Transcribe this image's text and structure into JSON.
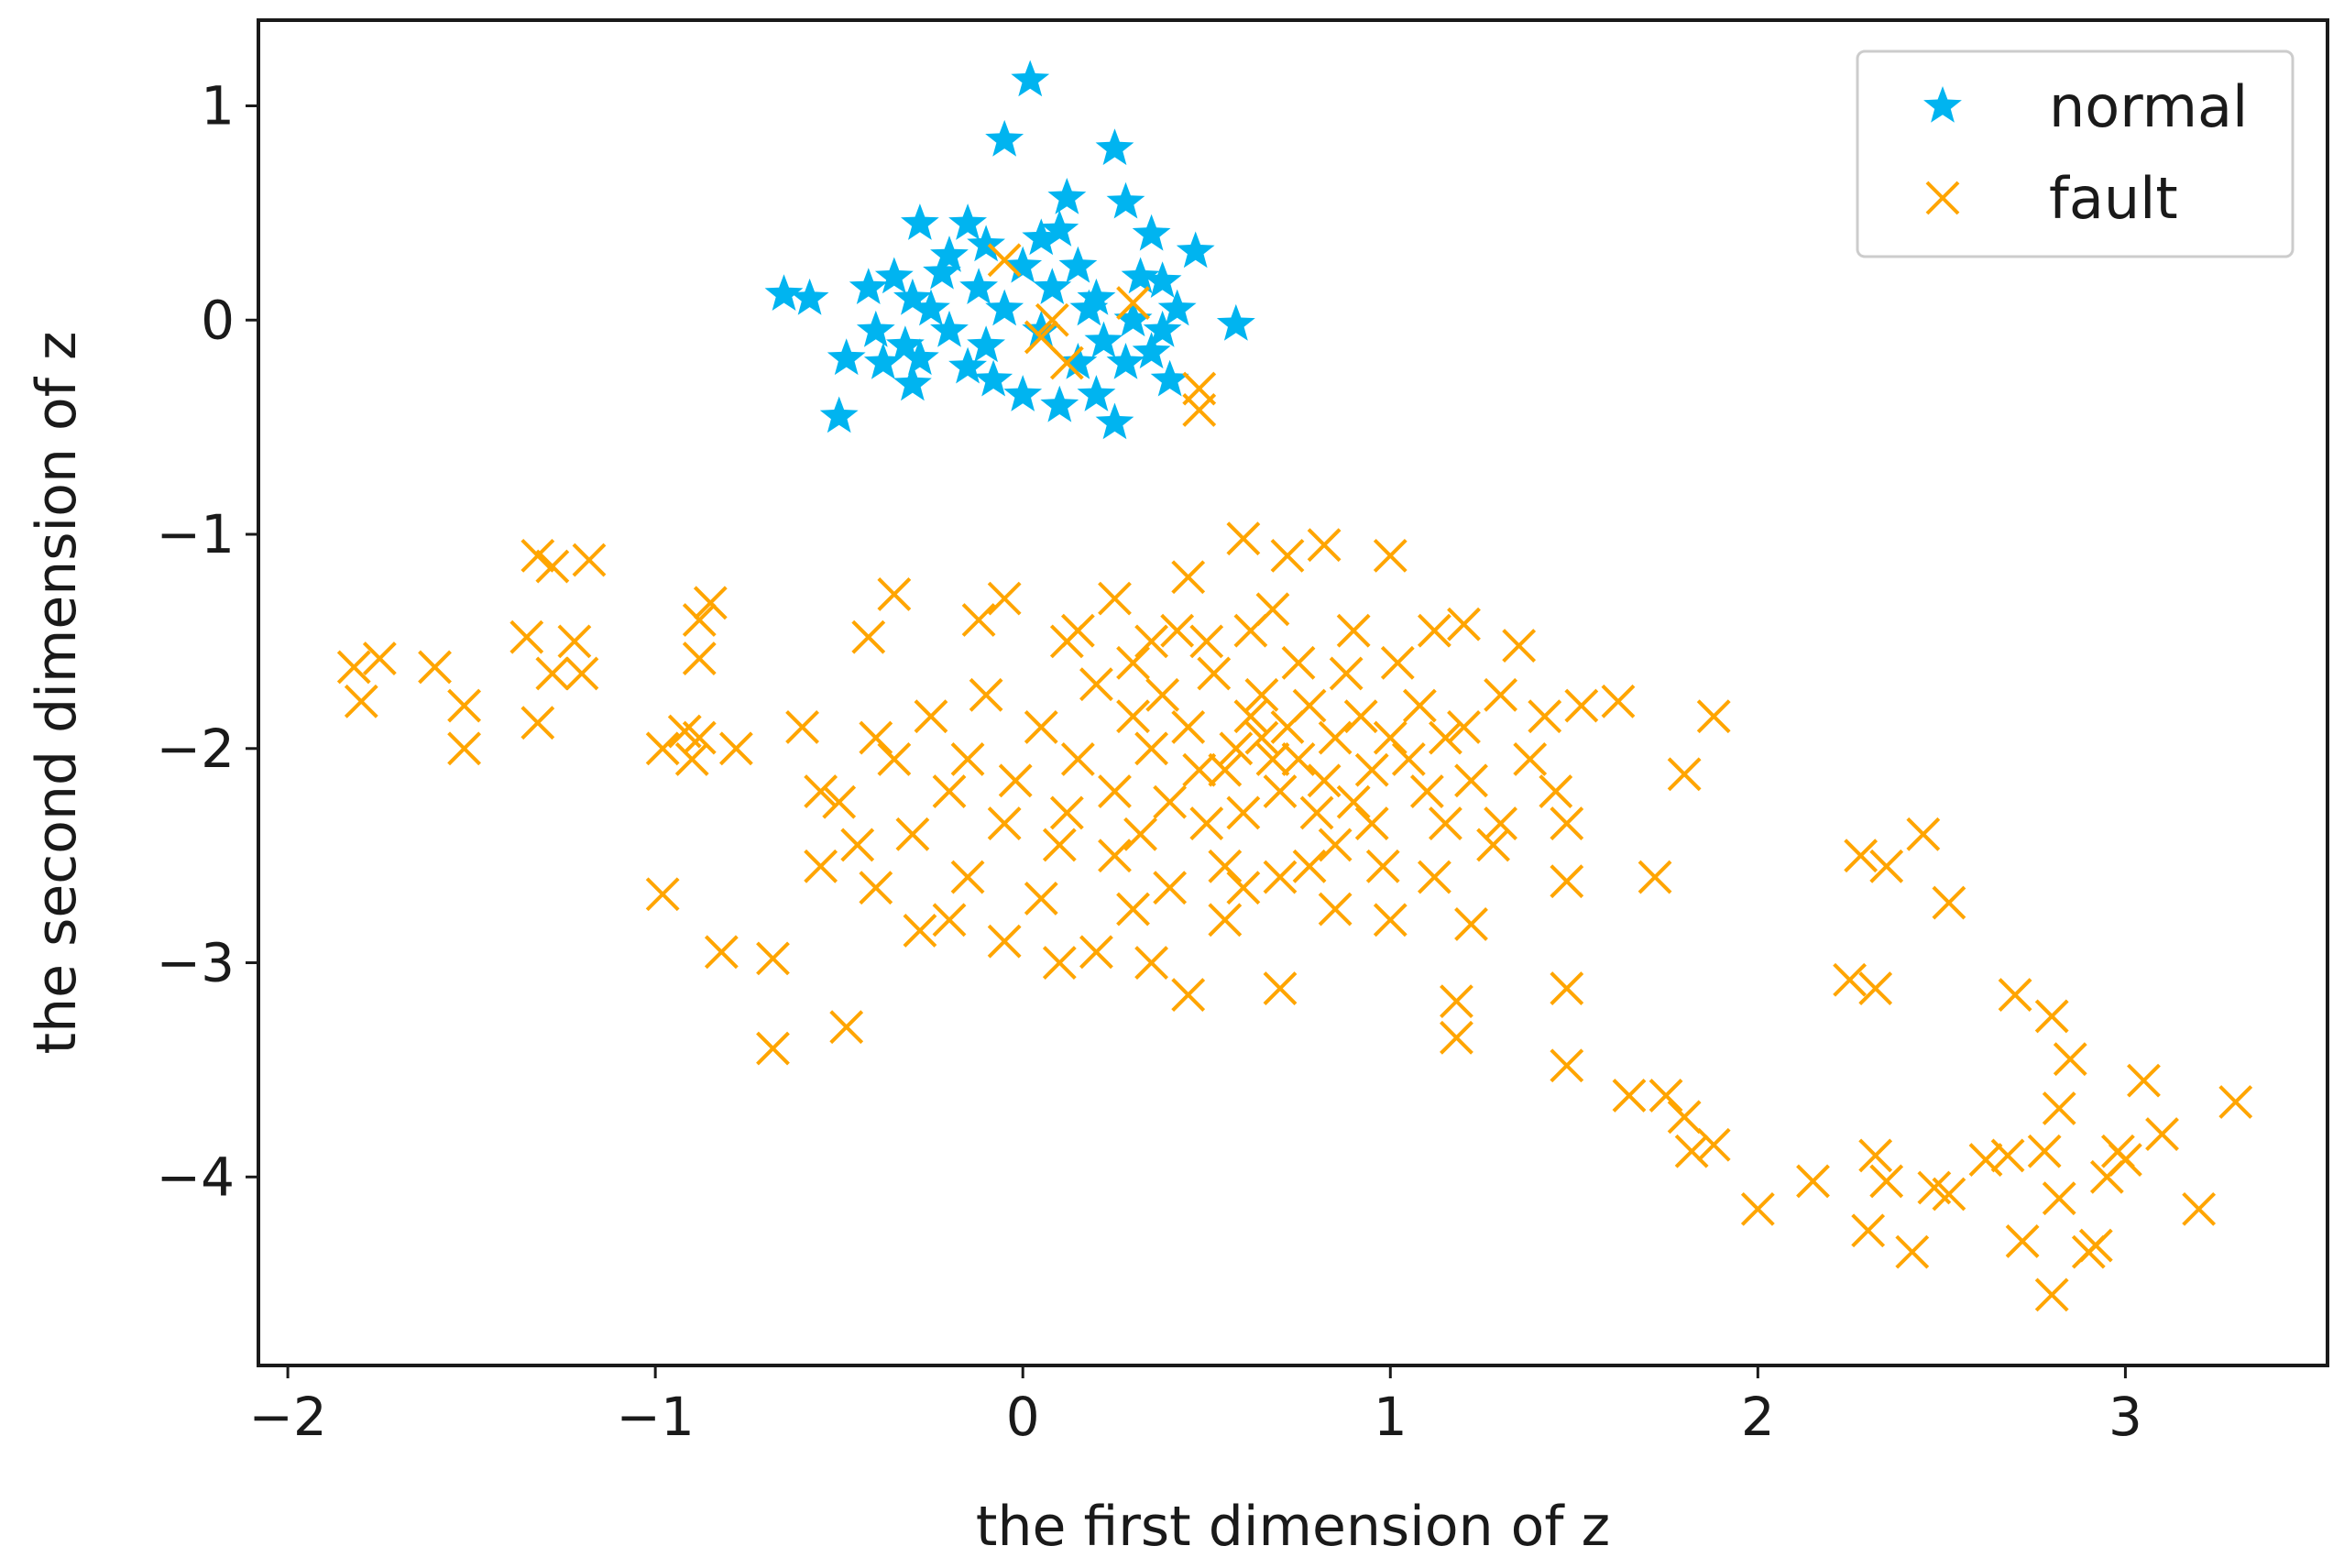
{
  "chart_data": {
    "type": "scatter",
    "title": "",
    "xlabel": "the first dimension of z",
    "ylabel": "the second dimension of z",
    "xlim": [
      -2.08,
      3.55
    ],
    "ylim": [
      -4.88,
      1.4
    ],
    "xticks": [
      -2,
      -1,
      0,
      1,
      2,
      3
    ],
    "yticks": [
      1,
      0,
      -1,
      -2,
      -3,
      -4
    ],
    "xtick_labels": [
      "−2",
      "−1",
      "0",
      "1",
      "2",
      "3"
    ],
    "ytick_labels": [
      "1",
      "0",
      "−1",
      "−2",
      "−3",
      "−4"
    ],
    "grid": false,
    "legend_position": "top-right",
    "series": [
      {
        "name": "normal",
        "marker": "star",
        "color": "#00b4f0",
        "points": [
          [
            0.02,
            1.12
          ],
          [
            -0.05,
            0.84
          ],
          [
            0.25,
            0.8
          ],
          [
            0.12,
            0.57
          ],
          [
            0.28,
            0.55
          ],
          [
            -0.28,
            0.45
          ],
          [
            0.35,
            0.4
          ],
          [
            0.47,
            0.32
          ],
          [
            0.58,
            -0.02
          ],
          [
            -0.65,
            0.12
          ],
          [
            -0.58,
            0.1
          ],
          [
            -0.5,
            -0.45
          ],
          [
            -0.48,
            -0.18
          ],
          [
            -0.4,
            -0.05
          ],
          [
            0.25,
            -0.48
          ],
          [
            0.4,
            -0.28
          ],
          [
            0.2,
            -0.35
          ],
          [
            -0.3,
            -0.3
          ],
          [
            -0.15,
            -0.22
          ],
          [
            0.0,
            -0.35
          ],
          [
            0.1,
            -0.4
          ],
          [
            0.38,
            -0.05
          ],
          [
            0.42,
            0.05
          ],
          [
            0.32,
            0.2
          ],
          [
            -0.35,
            0.2
          ],
          [
            -0.42,
            0.15
          ],
          [
            -0.3,
            0.1
          ],
          [
            -0.2,
            0.3
          ],
          [
            -0.1,
            0.35
          ],
          [
            0.05,
            0.38
          ],
          [
            0.15,
            0.25
          ],
          [
            -0.05,
            0.05
          ],
          [
            0.05,
            -0.05
          ],
          [
            -0.2,
            -0.05
          ],
          [
            -0.25,
            0.05
          ],
          [
            0.2,
            0.1
          ],
          [
            0.3,
            0.0
          ],
          [
            0.35,
            -0.15
          ],
          [
            0.15,
            -0.2
          ],
          [
            -0.1,
            -0.12
          ],
          [
            -0.12,
            0.15
          ],
          [
            0.08,
            0.15
          ],
          [
            -0.32,
            -0.12
          ],
          [
            -0.38,
            -0.2
          ],
          [
            0.28,
            -0.2
          ],
          [
            -0.15,
            0.45
          ],
          [
            0.1,
            0.42
          ],
          [
            0.0,
            0.25
          ],
          [
            0.18,
            0.05
          ],
          [
            -0.08,
            -0.28
          ],
          [
            0.22,
            -0.1
          ],
          [
            -0.22,
            0.22
          ],
          [
            -0.28,
            -0.18
          ],
          [
            0.38,
            0.18
          ]
        ]
      },
      {
        "name": "fault",
        "marker": "x",
        "color": "#ffa500",
        "points": [
          [
            -0.05,
            0.28
          ],
          [
            0.3,
            0.08
          ],
          [
            0.08,
            0.0
          ],
          [
            0.05,
            -0.08
          ],
          [
            0.12,
            -0.2
          ],
          [
            0.48,
            -0.32
          ],
          [
            0.48,
            -0.42
          ],
          [
            -1.82,
            -1.62
          ],
          [
            -1.75,
            -1.58
          ],
          [
            -1.8,
            -1.78
          ],
          [
            -1.6,
            -1.62
          ],
          [
            -1.52,
            -1.8
          ],
          [
            -1.52,
            -2.0
          ],
          [
            -1.35,
            -1.48
          ],
          [
            -1.32,
            -1.1
          ],
          [
            -1.28,
            -1.15
          ],
          [
            -1.22,
            -1.5
          ],
          [
            -1.18,
            -1.12
          ],
          [
            -1.2,
            -1.65
          ],
          [
            -1.28,
            -1.65
          ],
          [
            -1.32,
            -1.88
          ],
          [
            -0.98,
            -2.0
          ],
          [
            -0.92,
            -1.92
          ],
          [
            -0.88,
            -1.95
          ],
          [
            -0.9,
            -2.05
          ],
          [
            -0.78,
            -2.0
          ],
          [
            -0.88,
            -1.4
          ],
          [
            -0.85,
            -1.32
          ],
          [
            -0.88,
            -1.58
          ],
          [
            -0.98,
            -2.68
          ],
          [
            -0.82,
            -2.95
          ],
          [
            -0.68,
            -2.98
          ],
          [
            -0.68,
            -3.4
          ],
          [
            -0.48,
            -3.3
          ],
          [
            -0.6,
            -1.9
          ],
          [
            -0.55,
            -2.2
          ],
          [
            -0.4,
            -1.95
          ],
          [
            -0.35,
            -1.28
          ],
          [
            -0.42,
            -1.48
          ],
          [
            -0.55,
            -2.55
          ],
          [
            -0.45,
            -2.45
          ],
          [
            -0.28,
            -2.85
          ],
          [
            -0.15,
            -2.6
          ],
          [
            -0.12,
            -1.4
          ],
          [
            -0.05,
            -1.3
          ],
          [
            0.12,
            -1.5
          ],
          [
            0.25,
            -1.3
          ],
          [
            0.45,
            -1.2
          ],
          [
            0.6,
            -1.02
          ],
          [
            0.72,
            -1.1
          ],
          [
            0.82,
            -1.05
          ],
          [
            1.0,
            -1.1
          ],
          [
            1.12,
            -1.45
          ],
          [
            1.2,
            -1.42
          ],
          [
            1.35,
            -1.52
          ],
          [
            1.42,
            -1.85
          ],
          [
            1.52,
            -1.8
          ],
          [
            1.62,
            -1.78
          ],
          [
            1.88,
            -1.85
          ],
          [
            1.8,
            -2.12
          ],
          [
            1.48,
            -2.35
          ],
          [
            1.48,
            -2.62
          ],
          [
            1.72,
            -2.6
          ],
          [
            1.22,
            -2.82
          ],
          [
            1.18,
            -3.18
          ],
          [
            1.18,
            -3.35
          ],
          [
            1.48,
            -3.12
          ],
          [
            1.48,
            -3.48
          ],
          [
            1.65,
            -3.62
          ],
          [
            1.75,
            -3.62
          ],
          [
            1.8,
            -3.72
          ],
          [
            1.82,
            -3.88
          ],
          [
            1.88,
            -3.85
          ],
          [
            2.0,
            -4.15
          ],
          [
            2.15,
            -4.02
          ],
          [
            2.25,
            -3.08
          ],
          [
            2.32,
            -3.12
          ],
          [
            2.28,
            -2.5
          ],
          [
            2.35,
            -2.55
          ],
          [
            2.45,
            -2.4
          ],
          [
            2.52,
            -2.72
          ],
          [
            2.32,
            -3.9
          ],
          [
            2.35,
            -4.02
          ],
          [
            2.3,
            -4.25
          ],
          [
            2.42,
            -4.35
          ],
          [
            2.48,
            -4.05
          ],
          [
            2.52,
            -4.08
          ],
          [
            2.62,
            -3.92
          ],
          [
            2.68,
            -3.9
          ],
          [
            2.72,
            -4.3
          ],
          [
            2.7,
            -3.15
          ],
          [
            2.8,
            -3.25
          ],
          [
            2.85,
            -3.45
          ],
          [
            2.82,
            -3.68
          ],
          [
            2.78,
            -3.88
          ],
          [
            2.82,
            -4.1
          ],
          [
            2.8,
            -4.55
          ],
          [
            2.9,
            -4.35
          ],
          [
            2.95,
            -4.0
          ],
          [
            2.98,
            -3.88
          ],
          [
            2.92,
            -4.32
          ],
          [
            3.05,
            -3.55
          ],
          [
            3.1,
            -3.8
          ],
          [
            3.0,
            -3.92
          ],
          [
            3.2,
            -4.15
          ],
          [
            3.3,
            -3.65
          ],
          [
            -0.2,
            -2.8
          ],
          [
            -0.05,
            -2.9
          ],
          [
            0.1,
            -3.0
          ],
          [
            0.2,
            -2.95
          ],
          [
            0.35,
            -3.0
          ],
          [
            0.45,
            -3.15
          ],
          [
            0.55,
            -2.8
          ],
          [
            0.7,
            -3.12
          ],
          [
            0.85,
            -2.75
          ],
          [
            1.0,
            -2.8
          ],
          [
            1.12,
            -2.6
          ],
          [
            1.3,
            -2.35
          ],
          [
            1.22,
            -2.15
          ],
          [
            0.15,
            -1.45
          ],
          [
            0.3,
            -1.6
          ],
          [
            0.38,
            -1.75
          ],
          [
            0.5,
            -1.5
          ],
          [
            0.62,
            -1.45
          ],
          [
            0.75,
            -1.6
          ],
          [
            0.9,
            -1.45
          ],
          [
            1.02,
            -1.6
          ],
          [
            1.08,
            -1.8
          ],
          [
            1.15,
            -1.95
          ],
          [
            1.3,
            -1.75
          ],
          [
            1.38,
            -2.05
          ],
          [
            1.45,
            -2.2
          ],
          [
            1.28,
            -2.45
          ],
          [
            1.15,
            -2.35
          ],
          [
            0.98,
            -2.55
          ],
          [
            0.85,
            -2.45
          ],
          [
            0.7,
            -2.6
          ],
          [
            0.55,
            -2.55
          ],
          [
            0.4,
            -2.65
          ],
          [
            0.25,
            -2.5
          ],
          [
            0.1,
            -2.45
          ],
          [
            -0.05,
            -2.35
          ],
          [
            -0.2,
            -2.2
          ],
          [
            -0.3,
            -2.4
          ],
          [
            -0.35,
            -2.05
          ],
          [
            -0.25,
            -1.85
          ],
          [
            -0.1,
            -1.75
          ],
          [
            0.05,
            -1.9
          ],
          [
            0.15,
            -2.05
          ],
          [
            0.25,
            -2.2
          ],
          [
            0.35,
            -2.0
          ],
          [
            0.45,
            -1.9
          ],
          [
            0.55,
            -2.1
          ],
          [
            0.65,
            -1.95
          ],
          [
            0.75,
            -2.05
          ],
          [
            0.85,
            -1.95
          ],
          [
            0.95,
            -2.1
          ],
          [
            1.05,
            -2.05
          ],
          [
            0.6,
            -2.3
          ],
          [
            0.7,
            -2.2
          ],
          [
            0.8,
            -2.3
          ],
          [
            0.9,
            -2.25
          ],
          [
            0.5,
            -2.35
          ],
          [
            0.4,
            -2.25
          ],
          [
            0.3,
            -1.85
          ],
          [
            0.65,
            -1.75
          ],
          [
            0.78,
            -1.8
          ],
          [
            0.92,
            -1.85
          ],
          [
            1.0,
            -1.95
          ],
          [
            0.58,
            -2.0
          ],
          [
            0.68,
            -2.05
          ],
          [
            0.48,
            -2.1
          ],
          [
            0.82,
            -2.15
          ],
          [
            0.62,
            -1.85
          ],
          [
            0.72,
            -1.9
          ],
          [
            0.2,
            -1.7
          ],
          [
            -0.15,
            -2.05
          ],
          [
            -0.02,
            -2.15
          ],
          [
            0.12,
            -2.3
          ],
          [
            0.32,
            -2.4
          ],
          [
            0.52,
            -1.65
          ],
          [
            0.88,
            -1.65
          ],
          [
            1.1,
            -2.2
          ],
          [
            1.2,
            -1.9
          ],
          [
            0.42,
            -1.45
          ],
          [
            0.3,
            -2.75
          ],
          [
            0.6,
            -2.65
          ],
          [
            0.78,
            -2.55
          ],
          [
            -0.4,
            -2.65
          ],
          [
            -0.5,
            -2.25
          ],
          [
            0.05,
            -2.7
          ],
          [
            0.95,
            -2.35
          ],
          [
            0.35,
            -1.5
          ],
          [
            0.68,
            -1.35
          ]
        ]
      }
    ]
  }
}
